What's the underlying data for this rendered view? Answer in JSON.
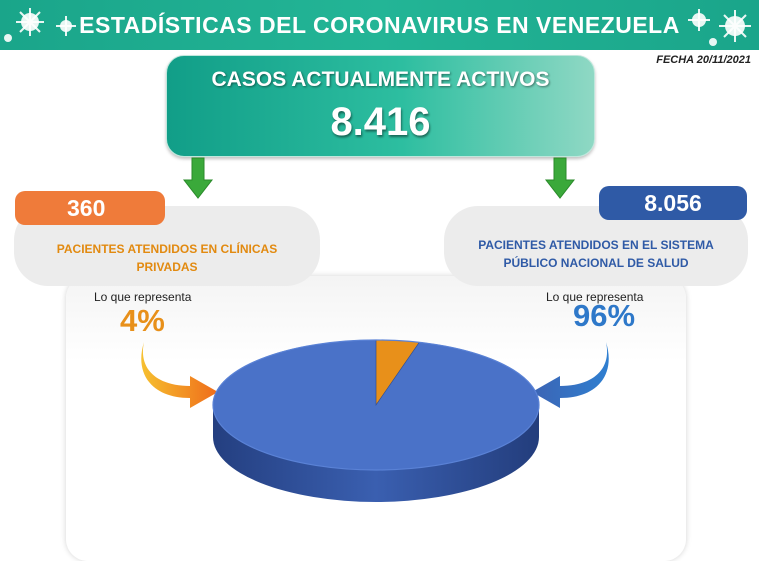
{
  "header": {
    "title": "ESTADÍSTICAS DEL CORONAVIRUS EN VENEZUELA"
  },
  "date": "FECHA 20/11/2021",
  "active": {
    "title": "CASOS ACTUALMENTE ACTIVOS",
    "value": "8.416"
  },
  "left": {
    "value": "360",
    "label_line1": "PACIENTES ATENDIDOS EN CLÍNICAS",
    "label_line2": "PRIVADAS",
    "represent": "Lo que representa",
    "percent": "4%"
  },
  "right": {
    "value": "8.056",
    "label_line1": "PACIENTES ATENDIDOS EN EL SISTEMA",
    "label_line2": "PÚBLICO NACIONAL DE SALUD",
    "represent": "Lo que representa",
    "percent": "96%"
  },
  "colors": {
    "header": "#1aa58a",
    "orange": "#ef7b3a",
    "blue": "#2f5aa6",
    "pie_blue": "#4a72c8",
    "pie_orange": "#e8901a",
    "arrow_green": "#3aa93a"
  },
  "icons": [
    "virus-icon",
    "down-arrow-icon",
    "curved-arrow-icon"
  ],
  "chart_data": {
    "type": "pie",
    "categories": [
      "PACIENTES ATENDIDOS EN CLÍNICAS PRIVADAS",
      "PACIENTES ATENDIDOS EN EL SISTEMA PÚBLICO NACIONAL DE SALUD"
    ],
    "values": [
      360,
      8056
    ],
    "percentages": [
      4,
      96
    ],
    "title": "",
    "legend": "none"
  }
}
